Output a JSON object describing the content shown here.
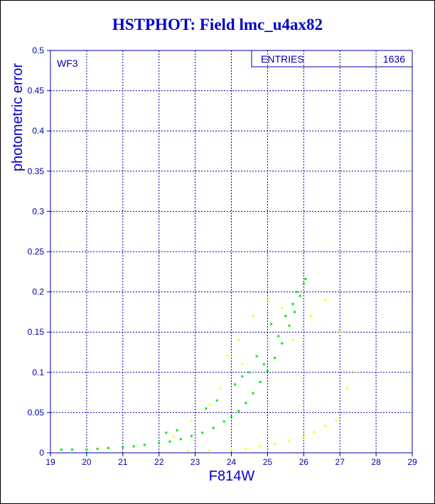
{
  "chart_data": {
    "type": "scatter",
    "title": "HSTPHOT: Field lmc_u4ax82",
    "xlabel": "F814W",
    "ylabel": "photometric error",
    "xlim": [
      19,
      29
    ],
    "ylim": [
      0,
      0.5
    ],
    "x_ticks": [
      "19",
      "20",
      "21",
      "22",
      "23",
      "24",
      "25",
      "26",
      "27",
      "28",
      "29"
    ],
    "y_ticks": [
      "0",
      "0.05",
      "0.1",
      "0.15",
      "0.2",
      "0.25",
      "0.3",
      "0.35",
      "0.4",
      "0.45",
      "0.5"
    ],
    "grid": true,
    "panel_label": "WF3",
    "stats_box": {
      "label": "ENTRIES",
      "value": "1636"
    },
    "colors": {
      "frame": "#0000aa",
      "title": "#0000cc",
      "series_a": "#00ee00",
      "series_b": "#ffff00"
    },
    "series": [
      {
        "color": "#00ee00",
        "points": [
          [
            19.3,
            0.004
          ],
          [
            19.6,
            0.004
          ],
          [
            20.0,
            0.004
          ],
          [
            20.3,
            0.005
          ],
          [
            20.6,
            0.006
          ],
          [
            21.0,
            0.007
          ],
          [
            21.3,
            0.008
          ],
          [
            21.6,
            0.01
          ],
          [
            22.0,
            0.012
          ],
          [
            22.3,
            0.014
          ],
          [
            22.6,
            0.017
          ],
          [
            22.9,
            0.021
          ],
          [
            23.2,
            0.025
          ],
          [
            23.5,
            0.031
          ],
          [
            23.8,
            0.039
          ],
          [
            24.0,
            0.045
          ],
          [
            24.2,
            0.052
          ],
          [
            24.4,
            0.062
          ],
          [
            24.6,
            0.074
          ],
          [
            24.8,
            0.088
          ],
          [
            25.0,
            0.102
          ],
          [
            25.2,
            0.118
          ],
          [
            25.4,
            0.136
          ],
          [
            25.6,
            0.158
          ],
          [
            25.75,
            0.175
          ],
          [
            25.9,
            0.195
          ],
          [
            26.0,
            0.21
          ],
          [
            26.05,
            0.216
          ],
          [
            22.2,
            0.025
          ],
          [
            22.5,
            0.028
          ],
          [
            23.3,
            0.055
          ],
          [
            23.6,
            0.065
          ],
          [
            24.1,
            0.085
          ],
          [
            24.3,
            0.095
          ],
          [
            24.5,
            0.1
          ],
          [
            24.9,
            0.11
          ],
          [
            25.3,
            0.145
          ],
          [
            25.5,
            0.17
          ],
          [
            25.7,
            0.185
          ],
          [
            25.8,
            0.2
          ],
          [
            25.1,
            0.16
          ],
          [
            24.7,
            0.12
          ]
        ]
      },
      {
        "color": "#ffff00",
        "points": [
          [
            22.8,
            0.002
          ],
          [
            23.4,
            0.003
          ],
          [
            24.0,
            0.004
          ],
          [
            24.4,
            0.005
          ],
          [
            24.8,
            0.008
          ],
          [
            25.2,
            0.011
          ],
          [
            25.6,
            0.015
          ],
          [
            26.0,
            0.02
          ],
          [
            26.3,
            0.026
          ],
          [
            26.6,
            0.033
          ],
          [
            26.9,
            0.04
          ],
          [
            22.4,
            0.02
          ],
          [
            22.9,
            0.04
          ],
          [
            23.4,
            0.06
          ],
          [
            23.7,
            0.08
          ],
          [
            24.2,
            0.14
          ],
          [
            24.6,
            0.17
          ],
          [
            25.0,
            0.19
          ],
          [
            25.4,
            0.18
          ],
          [
            26.2,
            0.17
          ],
          [
            26.6,
            0.19
          ],
          [
            27.0,
            0.15
          ],
          [
            27.4,
            0.1
          ],
          [
            27.2,
            0.08
          ],
          [
            23.9,
            0.12
          ],
          [
            24.3,
            0.11
          ],
          [
            25.7,
            0.14
          ]
        ]
      }
    ]
  }
}
